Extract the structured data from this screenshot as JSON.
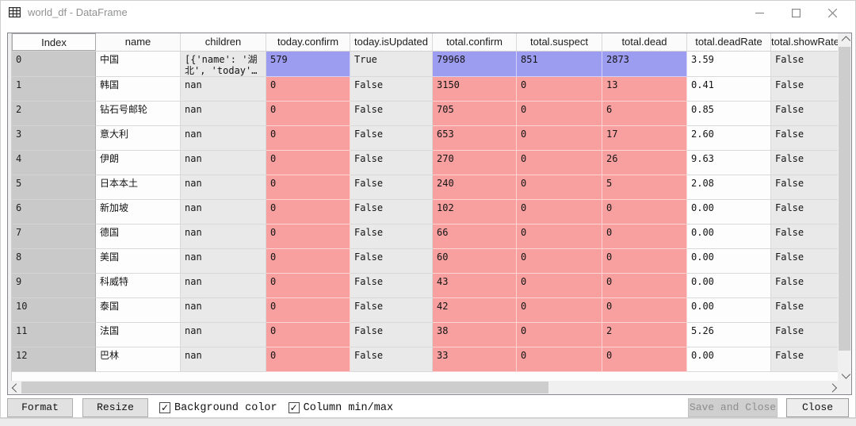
{
  "window": {
    "title": "world_df - DataFrame",
    "controls": {
      "minimize": "–",
      "maximize": "",
      "close": "✕"
    }
  },
  "colors": {
    "highlight_blue": "#9c9cf0",
    "highlight_red": "#f89f9f",
    "cell_gray": "#e9e9e9",
    "index_gray": "#c9c9c9"
  },
  "table": {
    "columns": [
      "Index",
      "name",
      "children",
      "today.confirm",
      "today.isUpdated",
      "total.confirm",
      "total.suspect",
      "total.dead",
      "total.deadRate",
      "total.showRate"
    ],
    "rows": [
      {
        "highlight": "blue",
        "cells": [
          "0",
          "中国",
          "[{'name': '湖北', 'today'…",
          "579",
          "True",
          "79968",
          "851",
          "2873",
          "3.59",
          "False"
        ]
      },
      {
        "highlight": "red",
        "cells": [
          "1",
          "韩国",
          "nan",
          "0",
          "False",
          "3150",
          "0",
          "13",
          "0.41",
          "False"
        ]
      },
      {
        "highlight": "red",
        "cells": [
          "2",
          "钻石号邮轮",
          "nan",
          "0",
          "False",
          "705",
          "0",
          "6",
          "0.85",
          "False"
        ]
      },
      {
        "highlight": "red",
        "cells": [
          "3",
          "意大利",
          "nan",
          "0",
          "False",
          "653",
          "0",
          "17",
          "2.60",
          "False"
        ]
      },
      {
        "highlight": "red",
        "cells": [
          "4",
          "伊朗",
          "nan",
          "0",
          "False",
          "270",
          "0",
          "26",
          "9.63",
          "False"
        ]
      },
      {
        "highlight": "red",
        "cells": [
          "5",
          "日本本土",
          "nan",
          "0",
          "False",
          "240",
          "0",
          "5",
          "2.08",
          "False"
        ]
      },
      {
        "highlight": "red",
        "cells": [
          "6",
          "新加坡",
          "nan",
          "0",
          "False",
          "102",
          "0",
          "0",
          "0.00",
          "False"
        ]
      },
      {
        "highlight": "red",
        "cells": [
          "7",
          "德国",
          "nan",
          "0",
          "False",
          "66",
          "0",
          "0",
          "0.00",
          "False"
        ]
      },
      {
        "highlight": "red",
        "cells": [
          "8",
          "美国",
          "nan",
          "0",
          "False",
          "60",
          "0",
          "0",
          "0.00",
          "False"
        ]
      },
      {
        "highlight": "red",
        "cells": [
          "9",
          "科威特",
          "nan",
          "0",
          "False",
          "43",
          "0",
          "0",
          "0.00",
          "False"
        ]
      },
      {
        "highlight": "red",
        "cells": [
          "10",
          "泰国",
          "nan",
          "0",
          "False",
          "42",
          "0",
          "0",
          "0.00",
          "False"
        ]
      },
      {
        "highlight": "red",
        "cells": [
          "11",
          "法国",
          "nan",
          "0",
          "False",
          "38",
          "0",
          "2",
          "5.26",
          "False"
        ]
      },
      {
        "highlight": "red",
        "cells": [
          "12",
          "巴林",
          "nan",
          "0",
          "False",
          "33",
          "0",
          "0",
          "0.00",
          "False"
        ]
      }
    ],
    "colored_column_indices": [
      3,
      5,
      6,
      7
    ],
    "gray_column_indices": [
      2,
      4,
      9
    ]
  },
  "footer": {
    "format_label": "Format",
    "resize_label": "Resize",
    "background_color_label": "Background color",
    "background_color_checked": "✓",
    "column_minmax_label": "Column min/max",
    "column_minmax_checked": "✓",
    "save_close_label": "Save and Close",
    "close_label": "Close"
  }
}
